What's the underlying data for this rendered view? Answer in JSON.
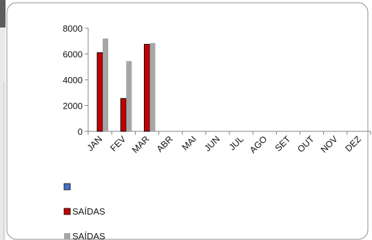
{
  "chart_data": {
    "type": "bar",
    "categories": [
      "JAN",
      "FEV",
      "MAR",
      "ABR",
      "MAI",
      "JUN",
      "JUL",
      "AGO",
      "SET",
      "OUT",
      "NOV",
      "DEZ"
    ],
    "series": [
      {
        "name": "",
        "color": "#4472c4",
        "values": [
          null,
          null,
          null,
          null,
          null,
          null,
          null,
          null,
          null,
          null,
          null,
          null
        ]
      },
      {
        "name": "SAÍDAS",
        "color": "#c00000",
        "values": [
          6100,
          2550,
          6750,
          null,
          null,
          null,
          null,
          null,
          null,
          null,
          null,
          null
        ]
      },
      {
        "name": "SAÍDAS",
        "color": "#a6a6a6",
        "values": [
          7200,
          5450,
          6850,
          null,
          null,
          null,
          null,
          null,
          null,
          null,
          null,
          null
        ]
      }
    ],
    "ylim": [
      0,
      8000
    ],
    "yticks": [
      0,
      2000,
      4000,
      6000,
      8000
    ],
    "legend_position": "bottom-left",
    "grid": false
  }
}
